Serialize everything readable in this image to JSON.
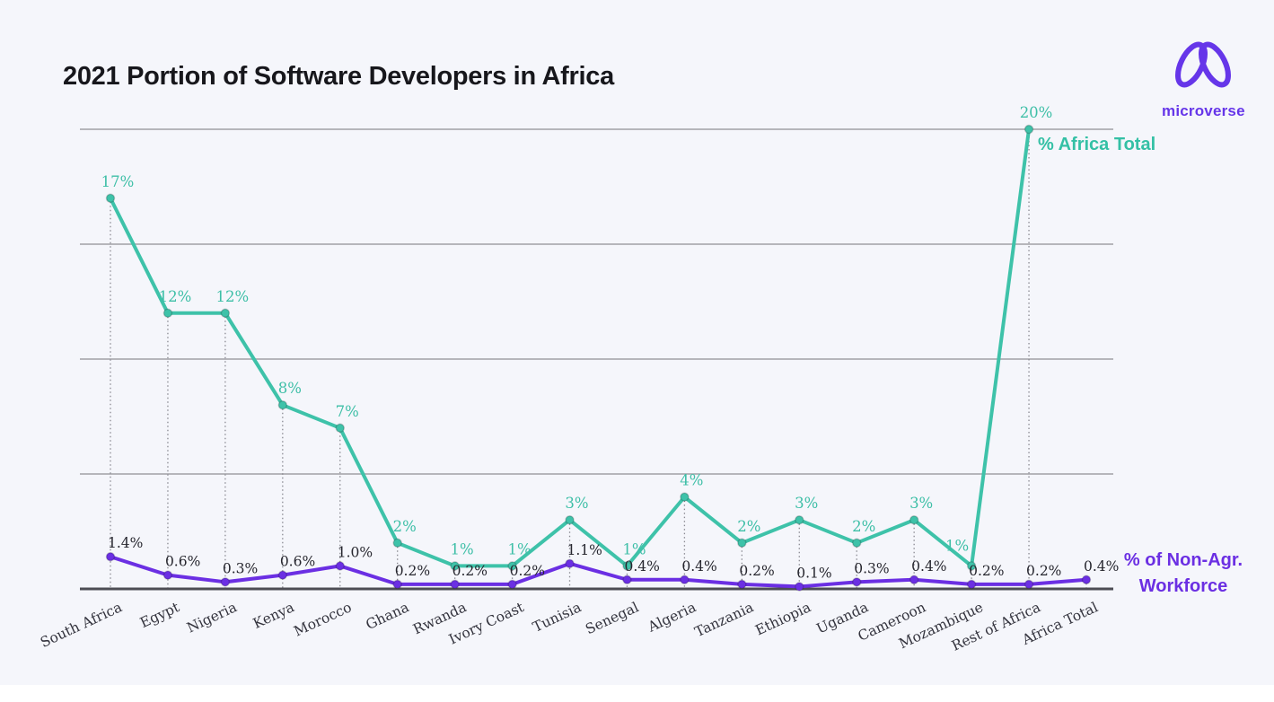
{
  "page": {
    "background": "#f5f6fb"
  },
  "title": "2021 Portion of Software Developers in Africa",
  "logo": {
    "text": "microverse",
    "color": "#6636e9"
  },
  "legend": {
    "africa_total": "% Africa Total",
    "africa_total_color": "#34c0a5",
    "workforce": "% of Non-Agr.\nWorkforce",
    "workforce_color": "#6b2fe3"
  },
  "chart_data": {
    "type": "line",
    "title": "2021 Portion of Software Developers in Africa",
    "categories": [
      "South Africa",
      "Egypt",
      "Nigeria",
      "Kenya",
      "Morocco",
      "Ghana",
      "Rwanda",
      "Ivory Coast",
      "Tunisia",
      "Senegal",
      "Algeria",
      "Tanzania",
      "Ethiopia",
      "Uganda",
      "Cameroon",
      "Mozambique",
      "Rest of Africa",
      "Africa Total"
    ],
    "series": [
      {
        "name": "% Africa Total",
        "color": "#3ec2a9",
        "label_color": "#3ebfa7",
        "values": [
          17,
          12,
          12,
          8,
          7,
          2,
          1,
          1,
          3,
          1,
          4,
          2,
          3,
          2,
          3,
          1,
          20,
          null
        ],
        "labels": [
          "17%",
          "12%",
          "12%",
          "8%",
          "7%",
          "2%",
          "1%",
          "1%",
          "3%",
          "1%",
          "4%",
          "2%",
          "3%",
          "2%",
          "3%",
          "1%",
          "20%",
          ""
        ]
      },
      {
        "name": "% of Non-Agr. Workforce",
        "color": "#6b2fe3",
        "label_color": "#26262e",
        "values": [
          1.4,
          0.6,
          0.3,
          0.6,
          1.0,
          0.2,
          0.2,
          0.2,
          1.1,
          0.4,
          0.4,
          0.2,
          0.1,
          0.3,
          0.4,
          0.2,
          0.2,
          0.4
        ],
        "labels": [
          "1.4%",
          "0.6%",
          "0.3%",
          "0.6%",
          "1.0%",
          "0.2%",
          "0.2%",
          "0.2%",
          "1.1%",
          "0.4%",
          "0.4%",
          "0.2%",
          "0.1%",
          "0.3%",
          "0.4%",
          "0.2%",
          "0.2%",
          "0.4%"
        ]
      }
    ],
    "ylim": [
      0,
      20
    ],
    "grid": true,
    "gridline_values": [
      5,
      10,
      15,
      20
    ],
    "xlabel": "",
    "ylabel": "",
    "legend_position": "inline-right-of-line-ends"
  }
}
